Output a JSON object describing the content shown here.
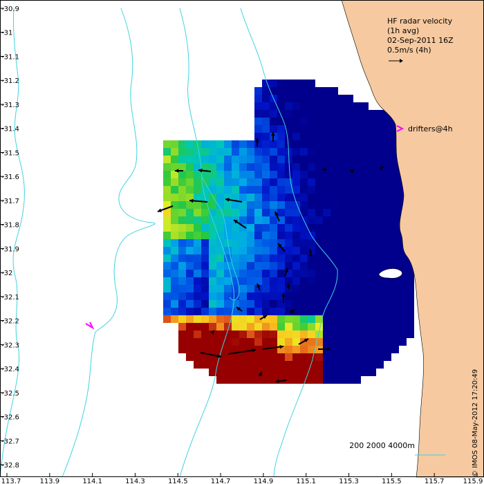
{
  "title_block": {
    "line1": "HF radar velocity",
    "line2": "(1h avg)",
    "line3": "02-Sep-2011 16Z",
    "scale_label": "0.5m/s (4h)"
  },
  "drifter_legend": "drifters@4h",
  "depth_legend": {
    "contours": "200  2000  4000m"
  },
  "credit": "© IMOS 08-May-2012 17:20:49",
  "colors": {
    "land": "#f6c9a0",
    "contour": "#3fd3e0",
    "arrow": "#000000",
    "drifter": "#ff00ff",
    "background": "#ffffff"
  },
  "axes": {
    "x_ticks": [
      "113.7",
      "113.9",
      "114.1",
      "114.3",
      "114.5",
      "114.7",
      "114.9",
      "115.1",
      "115.3",
      "115.5",
      "115.7",
      "115.9"
    ],
    "y_ticks": [
      "-30.9",
      "-31",
      "-31.1",
      "-31.2",
      "-31.3",
      "-31.4",
      "-31.5",
      "-31.6",
      "-31.7",
      "-31.8",
      "-31.9",
      "-32",
      "-32.1",
      "-32.2",
      "-32.3",
      "-32.4",
      "-32.5",
      "-32.6",
      "-32.7",
      "-32.8"
    ],
    "lon_range": [
      113.7,
      115.9
    ],
    "lat_range": [
      -32.8,
      -30.9
    ]
  }
}
